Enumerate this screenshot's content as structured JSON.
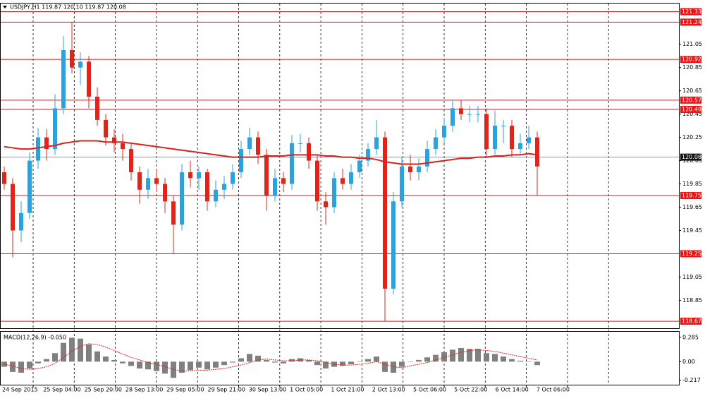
{
  "chart_data": [
    {
      "type": "candlestick",
      "header": "USDJPY,H1  119.87 120.10 119.87 120.08",
      "up_color": "#29a3e0",
      "down_color": "#e2231a",
      "ma_color": "#d9221c",
      "level_color": "#ee1111",
      "ylim": [
        118.61,
        121.4
      ],
      "yticks": [
        121.05,
        120.85,
        120.65,
        120.45,
        120.25,
        120.05,
        119.85,
        119.65,
        119.45,
        119.05,
        118.85
      ],
      "levels": [
        121.33,
        121.24,
        120.92,
        120.57,
        120.49,
        119.75,
        119.25,
        118.67
      ],
      "current_price": 120.08,
      "x_labels": [
        "24 Sep 2015",
        "25 Sep 04:00",
        "25 Sep 20:00",
        "28 Sep 13:00",
        "29 Sep 05:00",
        "29 Sep 21:00",
        "30 Sep 13:00",
        "1 Oct 05:00",
        "1 Oct 21:00",
        "2 Oct 13:00",
        "5 Oct 06:00",
        "5 Oct 22:00",
        "6 Oct 14:00",
        "7 Oct 06:00"
      ],
      "open": [
        119.95,
        119.85,
        119.45,
        119.6,
        120.05,
        120.25,
        120.15,
        120.5,
        121.0,
        120.85,
        120.9,
        120.6,
        120.4,
        120.25,
        120.2,
        120.15,
        119.95,
        119.8,
        119.9,
        119.85,
        119.7,
        119.5,
        119.95,
        119.9,
        119.95,
        119.7,
        119.8,
        119.85,
        119.95,
        120.15,
        120.25,
        120.1,
        119.75,
        119.9,
        119.85,
        120.2,
        120.2,
        120.05,
        119.7,
        119.65,
        119.9,
        119.85,
        119.95,
        120.05,
        120.15,
        120.25,
        118.95,
        119.7,
        120.0,
        119.95,
        120.0,
        120.15,
        120.25,
        120.35,
        120.5,
        120.45,
        120.45,
        120.45,
        120.15,
        120.35,
        120.35,
        120.15,
        120.2,
        120.25
      ],
      "high": [
        120.0,
        119.9,
        119.7,
        120.12,
        120.33,
        120.32,
        120.62,
        121.12,
        121.24,
        120.98,
        120.95,
        120.68,
        120.45,
        120.32,
        120.28,
        120.2,
        120.0,
        119.98,
        119.98,
        119.9,
        119.75,
        120.02,
        120.05,
        120.0,
        119.98,
        119.88,
        119.92,
        120.02,
        120.22,
        120.33,
        120.3,
        120.15,
        119.98,
        119.95,
        120.27,
        120.28,
        120.25,
        120.1,
        119.78,
        119.95,
        119.98,
        120.02,
        120.1,
        120.2,
        120.4,
        120.3,
        119.78,
        120.08,
        120.1,
        120.07,
        120.22,
        120.32,
        120.42,
        120.57,
        120.57,
        120.52,
        120.52,
        120.5,
        120.48,
        120.4,
        120.4,
        120.28,
        120.35,
        120.3
      ],
      "low": [
        119.8,
        119.22,
        119.35,
        119.55,
        119.98,
        120.05,
        120.1,
        120.45,
        120.8,
        120.7,
        120.5,
        120.35,
        120.18,
        120.12,
        120.05,
        119.88,
        119.68,
        119.72,
        119.78,
        119.6,
        119.25,
        119.45,
        119.82,
        119.8,
        119.62,
        119.65,
        119.72,
        119.8,
        119.9,
        120.1,
        120.02,
        119.62,
        119.7,
        119.78,
        119.8,
        120.12,
        119.98,
        119.62,
        119.5,
        119.6,
        119.8,
        119.8,
        119.9,
        120.0,
        120.1,
        118.67,
        118.9,
        119.65,
        119.88,
        119.88,
        119.95,
        120.1,
        120.2,
        120.3,
        120.4,
        120.38,
        120.38,
        120.08,
        120.1,
        120.2,
        120.08,
        120.1,
        120.15,
        119.75
      ],
      "close": [
        119.85,
        119.45,
        119.6,
        120.05,
        120.25,
        120.15,
        120.5,
        121.0,
        120.85,
        120.9,
        120.6,
        120.4,
        120.25,
        120.2,
        120.15,
        119.95,
        119.8,
        119.9,
        119.85,
        119.7,
        119.5,
        119.95,
        119.9,
        119.95,
        119.7,
        119.8,
        119.85,
        119.95,
        120.15,
        120.25,
        120.1,
        119.75,
        119.9,
        119.85,
        120.2,
        120.2,
        120.05,
        119.7,
        119.65,
        119.9,
        119.85,
        119.95,
        120.05,
        120.15,
        120.25,
        118.95,
        119.7,
        120.0,
        119.95,
        120.0,
        120.15,
        120.25,
        120.35,
        120.5,
        120.45,
        120.45,
        120.45,
        120.15,
        120.35,
        120.35,
        120.15,
        120.2,
        120.25,
        120.0
      ],
      "ma": [
        120.17,
        120.16,
        120.15,
        120.15,
        120.16,
        120.17,
        120.18,
        120.2,
        120.21,
        120.22,
        120.22,
        120.22,
        120.21,
        120.21,
        120.21,
        120.2,
        120.19,
        120.18,
        120.17,
        120.16,
        120.15,
        120.14,
        120.13,
        120.12,
        120.11,
        120.1,
        120.09,
        120.08,
        120.08,
        120.08,
        120.08,
        120.09,
        120.09,
        120.09,
        120.1,
        120.1,
        120.1,
        120.1,
        120.09,
        120.09,
        120.08,
        120.08,
        120.07,
        120.07,
        120.06,
        120.04,
        120.03,
        120.02,
        120.02,
        120.02,
        120.03,
        120.04,
        120.05,
        120.06,
        120.07,
        120.07,
        120.08,
        120.08,
        120.09,
        120.09,
        120.1,
        120.1,
        120.11,
        120.1
      ]
    },
    {
      "type": "macd",
      "label": "MACD(12,26,9) -0.050",
      "hist_color": "#808080",
      "signal_color": "#e2231a",
      "ylim": [
        -0.27,
        0.35
      ],
      "yticks": [
        0.285,
        {
          "value": 0,
          "label": "0.00"
        },
        -0.217
      ],
      "histogram": [
        -0.06,
        -0.12,
        -0.13,
        -0.08,
        -0.02,
        0.03,
        0.1,
        0.22,
        0.28,
        0.27,
        0.2,
        0.12,
        0.06,
        0.02,
        -0.02,
        -0.05,
        -0.08,
        -0.09,
        -0.11,
        -0.14,
        -0.19,
        -0.13,
        -0.1,
        -0.07,
        -0.09,
        -0.07,
        -0.04,
        -0.01,
        0.04,
        0.09,
        0.07,
        0.02,
        -0.01,
        -0.02,
        0.03,
        0.04,
        0.02,
        -0.04,
        -0.08,
        -0.06,
        -0.05,
        -0.03,
        0.0,
        0.03,
        0.06,
        -0.12,
        -0.13,
        -0.06,
        0.0,
        0.02,
        0.05,
        0.08,
        0.11,
        0.14,
        0.16,
        0.15,
        0.15,
        0.1,
        0.09,
        0.06,
        0.03,
        0.01,
        0.0,
        -0.04
      ],
      "signal": [
        -0.03,
        -0.05,
        -0.08,
        -0.09,
        -0.08,
        -0.06,
        -0.02,
        0.05,
        0.12,
        0.18,
        0.21,
        0.2,
        0.17,
        0.13,
        0.09,
        0.05,
        0.02,
        -0.01,
        -0.03,
        -0.06,
        -0.09,
        -0.11,
        -0.11,
        -0.1,
        -0.1,
        -0.09,
        -0.08,
        -0.06,
        -0.04,
        -0.01,
        0.02,
        0.03,
        0.02,
        0.01,
        0.01,
        0.02,
        0.02,
        0.01,
        -0.01,
        -0.03,
        -0.04,
        -0.04,
        -0.03,
        -0.02,
        0.0,
        -0.03,
        -0.06,
        -0.07,
        -0.05,
        -0.03,
        -0.01,
        0.02,
        0.05,
        0.08,
        0.11,
        0.13,
        0.14,
        0.13,
        0.12,
        0.1,
        0.08,
        0.06,
        0.04,
        0.02
      ]
    }
  ]
}
